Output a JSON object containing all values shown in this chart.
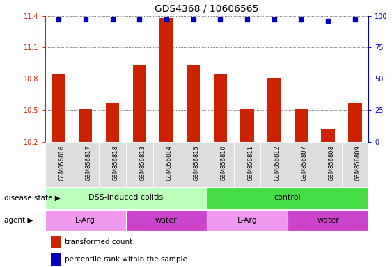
{
  "title": "GDS4368 / 10606565",
  "samples": [
    "GSM856816",
    "GSM856817",
    "GSM856818",
    "GSM856813",
    "GSM856814",
    "GSM856815",
    "GSM856810",
    "GSM856811",
    "GSM856812",
    "GSM856807",
    "GSM856808",
    "GSM856809"
  ],
  "bar_values": [
    10.85,
    10.51,
    10.57,
    10.93,
    11.38,
    10.93,
    10.85,
    10.51,
    10.81,
    10.51,
    10.32,
    10.57
  ],
  "percentile_values": [
    97,
    97,
    97,
    97,
    97,
    97,
    97,
    97,
    97,
    97,
    96,
    97
  ],
  "ylim_left": [
    10.2,
    11.4
  ],
  "ylim_right": [
    0,
    100
  ],
  "yticks_left": [
    10.2,
    10.5,
    10.8,
    11.1,
    11.4
  ],
  "yticks_right": [
    0,
    25,
    50,
    75,
    100
  ],
  "bar_color": "#cc2200",
  "dot_color": "#0000bb",
  "disease_state_groups": [
    {
      "label": "DSS-induced colitis",
      "start": 0,
      "end": 6,
      "color": "#bbffbb"
    },
    {
      "label": "control",
      "start": 6,
      "end": 12,
      "color": "#44dd44"
    }
  ],
  "agent_groups": [
    {
      "label": "L-Arg",
      "start": 0,
      "end": 3,
      "color": "#ee99ee"
    },
    {
      "label": "water",
      "start": 3,
      "end": 6,
      "color": "#cc44cc"
    },
    {
      "label": "L-Arg",
      "start": 6,
      "end": 9,
      "color": "#ee99ee"
    },
    {
      "label": "water",
      "start": 9,
      "end": 12,
      "color": "#cc44cc"
    }
  ],
  "legend_red_label": "transformed count",
  "legend_blue_label": "percentile rank within the sample",
  "disease_state_label": "disease state",
  "agent_label": "agent",
  "tick_bg_color": "#dddddd"
}
